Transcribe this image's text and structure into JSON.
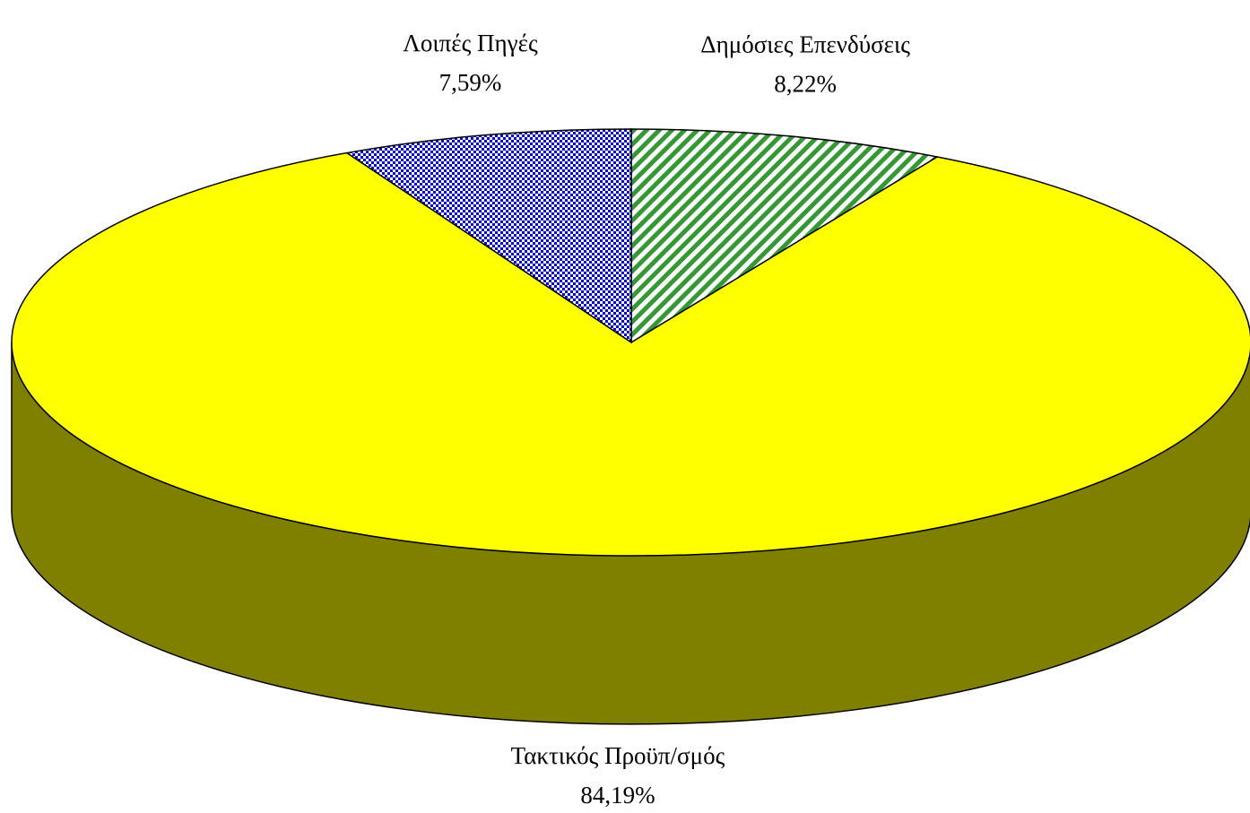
{
  "chart_data": {
    "type": "pie3d",
    "categories": [
      "Δημόσιες Επενδύσεις",
      "Τακτικός Προϋπ/σμός",
      "Λοιπές Πηγές"
    ],
    "values": [
      8.22,
      84.19,
      7.59
    ],
    "value_labels": [
      "8,22%",
      "84,19%",
      "7,59%"
    ],
    "colors": [
      "#008000",
      "#ffff00",
      "#0000ff"
    ],
    "patterns": [
      "diagonal",
      "solid",
      "checker"
    ]
  }
}
